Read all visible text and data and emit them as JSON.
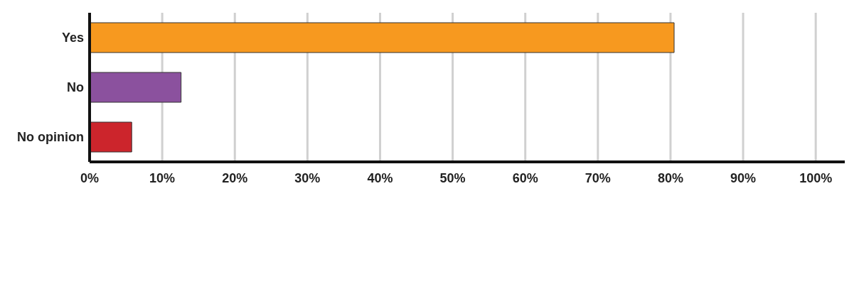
{
  "chart_data": {
    "type": "bar",
    "orientation": "horizontal",
    "categories": [
      "Yes",
      "No",
      "No opinion"
    ],
    "values": [
      80.5,
      12.6,
      5.8
    ],
    "colors": [
      "#f7991f",
      "#8b519e",
      "#cc252c"
    ],
    "xlim": [
      0,
      104
    ],
    "xticks": [
      {
        "value": 0,
        "label": "0%"
      },
      {
        "value": 10,
        "label": "10%"
      },
      {
        "value": 20,
        "label": "20%"
      },
      {
        "value": 30,
        "label": "30%"
      },
      {
        "value": 40,
        "label": "40%"
      },
      {
        "value": 50,
        "label": "50%"
      },
      {
        "value": 60,
        "label": "60%"
      },
      {
        "value": 70,
        "label": "70%"
      },
      {
        "value": 80,
        "label": "80%"
      },
      {
        "value": 90,
        "label": "90%"
      },
      {
        "value": 100,
        "label": "100%"
      }
    ],
    "grid": "x"
  }
}
